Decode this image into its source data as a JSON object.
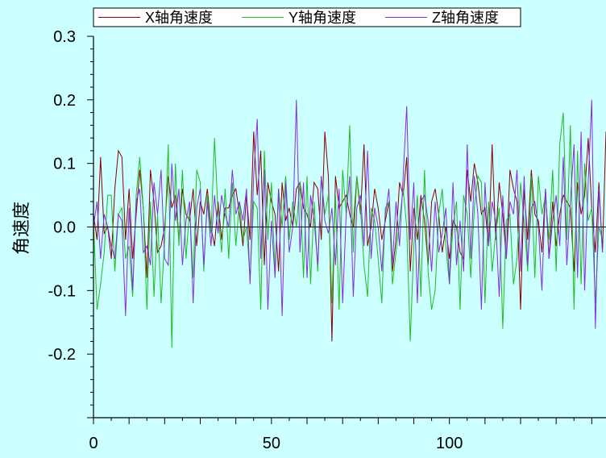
{
  "chart_data": {
    "type": "line",
    "title": "",
    "xlabel": "",
    "ylabel": "角速度",
    "xlim": [
      0,
      144
    ],
    "ylim": [
      -0.3,
      0.3
    ],
    "xticks": [
      0,
      50,
      100
    ],
    "xtick_labels": [
      "0",
      "50",
      "100"
    ],
    "yticks": [
      0.3,
      0.2,
      0.1,
      0.0,
      -0.1,
      -0.2
    ],
    "ytick_labels": [
      "0.3",
      "0.2",
      "0.1",
      "0.0",
      "-0.1",
      "-0.2"
    ],
    "zero_line": true,
    "grid": false,
    "legend_position": "top",
    "series": [
      {
        "name": "X轴角速度",
        "color": "#8b0000",
        "values": [
          0.02,
          -0.02,
          0.11,
          -0.01,
          0.0,
          -0.05,
          0.06,
          0.12,
          0.11,
          -0.02,
          0.06,
          -0.05,
          0.02,
          0.09,
          0.03,
          -0.08,
          0.09,
          0.04,
          -0.04,
          -0.03,
          0.0,
          0.08,
          0.03,
          0.05,
          -0.02,
          0.06,
          0.02,
          0.01,
          0.06,
          -0.03,
          0.04,
          0.02,
          0.06,
          0.0,
          -0.03,
          0.04,
          -0.02,
          0.03,
          0.03,
          0.05,
          0.06,
          0.02,
          -0.03,
          0.05,
          -0.02,
          0.15,
          0.05,
          0.12,
          -0.06,
          0.07,
          0.04,
          0.02,
          -0.07,
          0.07,
          0.01,
          0.03,
          0.0,
          0.06,
          0.07,
          0.03,
          0.02,
          0.0,
          0.07,
          0.06,
          -0.02,
          0.15,
          0.08,
          -0.18,
          0.08,
          0.03,
          0.04,
          0.05,
          0.02,
          0.0,
          0.08,
          0.02,
          0.13,
          -0.03,
          0.0,
          0.06,
          0.03,
          -0.02,
          0.01,
          0.04,
          -0.07,
          -0.02,
          0.07,
          0.05,
          0.11,
          -0.07,
          0.03,
          -0.02,
          0.05,
          0.01,
          -0.06,
          0.04,
          0.06,
          0.02,
          -0.04,
          0.0,
          -0.05,
          0.01,
          0.0,
          -0.04,
          -0.05,
          0.09,
          0.04,
          0.1,
          0.07,
          0.02,
          0.03,
          -0.03,
          0.13,
          -0.02,
          0.07,
          0.02,
          -0.05,
          0.09,
          0.06,
          0.04,
          -0.13,
          0.06,
          -0.02,
          0.09,
          0.02,
          0.01,
          -0.04,
          0.06,
          -0.05,
          0.04,
          -0.03,
          0.02,
          0.05,
          0.04,
          0.03,
          -0.07,
          0.07,
          0.02,
          0.05,
          0.14,
          0.03,
          -0.04,
          0.07,
          -0.04,
          0.15
        ]
      },
      {
        "name": "Y轴角速度",
        "color": "#22bb22",
        "values": [
          0.01,
          -0.13,
          -0.09,
          -0.04,
          0.05,
          0.05,
          -0.07,
          0.02,
          0.03,
          -0.05,
          -0.03,
          -0.11,
          0.05,
          0.11,
          0.03,
          -0.13,
          0.04,
          -0.11,
          0.02,
          -0.12,
          -0.02,
          0.13,
          -0.19,
          0.1,
          -0.03,
          0.09,
          -0.05,
          0.03,
          -0.08,
          0.09,
          0.07,
          -0.07,
          0.05,
          -0.01,
          0.14,
          0.02,
          -0.04,
          0.06,
          -0.05,
          0.07,
          -0.03,
          0.04,
          -0.02,
          0.0,
          -0.08,
          0.04,
          0.03,
          -0.13,
          0.12,
          -0.02,
          0.07,
          -0.07,
          0.06,
          0.0,
          0.08,
          -0.02,
          0.04,
          0.0,
          0.07,
          -0.08,
          0.08,
          -0.09,
          0.04,
          -0.07,
          0.08,
          0.02,
          0.05,
          -0.12,
          0.05,
          -0.13,
          0.09,
          0.02,
          0.16,
          -0.04,
          0.08,
          0.03,
          -0.06,
          -0.11,
          0.03,
          0.01,
          -0.05,
          -0.12,
          0.03,
          0.04,
          -0.09,
          -0.04,
          0.01,
          0.06,
          0.0,
          -0.18,
          -0.03,
          0.05,
          -0.11,
          0.09,
          -0.07,
          -0.13,
          -0.1,
          0.02,
          0.06,
          -0.03,
          -0.09,
          0.0,
          0.04,
          -0.13,
          0.05,
          0.02,
          -0.08,
          0.03,
          0.08,
          0.07,
          -0.12,
          0.04,
          -0.07,
          -0.01,
          0.03,
          -0.16,
          0.01,
          0.02,
          -0.09,
          -0.05,
          0.07,
          0.01,
          -0.07,
          0.08,
          -0.08,
          0.08,
          0.02,
          0.05,
          -0.02,
          0.09,
          -0.07,
          0.13,
          0.18,
          -0.02,
          0.16,
          -0.13,
          0.12,
          -0.09,
          0.1,
          0.01,
          0.03,
          -0.12,
          0.0,
          -0.02
        ]
      },
      {
        "name": "Z轴角速度",
        "color": "#8a2be2",
        "values": [
          0.0,
          0.04,
          -0.05,
          0.02,
          0.0,
          -0.03,
          -0.05,
          0.02,
          0.01,
          -0.14,
          0.03,
          -0.1,
          0.04,
          0.06,
          -0.04,
          -0.03,
          -0.06,
          0.07,
          0.02,
          0.09,
          -0.05,
          -0.06,
          0.1,
          0.01,
          0.06,
          -0.06,
          0.01,
          0.04,
          -0.12,
          0.03,
          0.06,
          -0.06,
          0.04,
          -0.03,
          0.05,
          -0.01,
          0.05,
          0.02,
          0.0,
          0.09,
          0.02,
          0.04,
          0.01,
          0.06,
          -0.09,
          0.08,
          0.17,
          -0.05,
          0.09,
          -0.13,
          0.01,
          -0.08,
          0.06,
          -0.14,
          0.07,
          -0.04,
          0.0,
          0.2,
          -0.04,
          0.07,
          -0.08,
          0.05,
          0.01,
          -0.06,
          0.08,
          0.01,
          -0.01,
          0.03,
          -0.06,
          0.06,
          -0.12,
          0.02,
          0.08,
          -0.11,
          0.03,
          0.05,
          -0.03,
          0.12,
          -0.05,
          0.03,
          0.0,
          -0.07,
          0.02,
          0.06,
          -0.06,
          0.04,
          -0.03,
          0.08,
          0.19,
          -0.02,
          0.07,
          -0.12,
          0.04,
          0.05,
          0.01,
          -0.07,
          0.04,
          -0.04,
          -0.01,
          0.03,
          -0.09,
          0.07,
          -0.06,
          0.01,
          -0.07,
          0.13,
          -0.05,
          0.08,
          0.02,
          -0.13,
          0.07,
          -0.03,
          0.04,
          0.01,
          -0.11,
          0.05,
          -0.05,
          0.04,
          0.02,
          0.09,
          -0.07,
          0.08,
          -0.06,
          0.03,
          0.04,
          0.0,
          -0.1,
          0.06,
          -0.05,
          0.01,
          0.05,
          -0.03,
          0.11,
          -0.06,
          0.04,
          0.13,
          -0.08,
          0.15,
          -0.1,
          0.07,
          0.2,
          -0.16,
          0.06,
          -0.04
        ]
      }
    ]
  }
}
